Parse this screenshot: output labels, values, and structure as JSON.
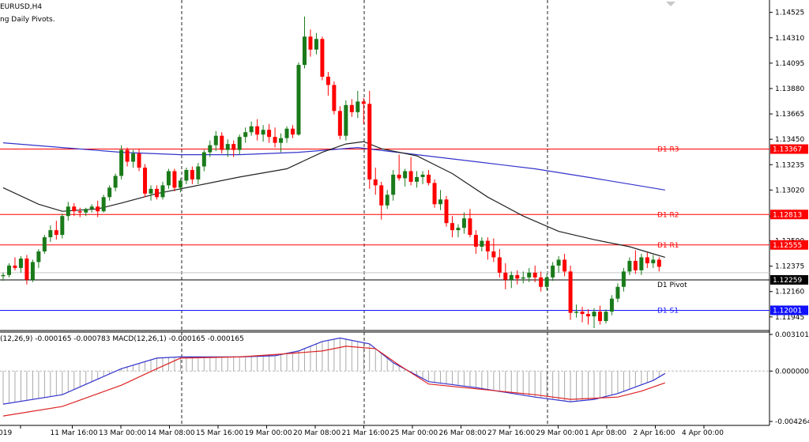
{
  "header": {
    "symbol_timeframe": "EURUSD,H4",
    "indicator": "ng Daily Pivots."
  },
  "macd_label": "(12,26,9) -0.000165 -0.000783 MACD(12,26,1) -0.000165 -0.000165",
  "colors": {
    "bull": "#1a7a1a",
    "bear": "#ff0000",
    "pivot_resistance": "#ff0000",
    "pivot_support": "#1010ff",
    "ma_slow": "#3333cc",
    "ma_fast": "#222222",
    "macd_line": "#3333cc",
    "signal_line": "#dd2222"
  },
  "chart_data": [
    {
      "type": "candlestick",
      "title": "EURUSD,H4",
      "ylim": [
        1.1183,
        1.1463
      ],
      "y_ticks": [
        "1.14525",
        "1.14310",
        "1.14095",
        "1.13880",
        "1.13665",
        "1.13450",
        "1.13235",
        "1.13020",
        "1.12800",
        "1.12590",
        "1.12375",
        "1.12160",
        "1.11945"
      ],
      "x_ticks": [
        "019",
        "11 Mar 16:00",
        "13 Mar 00:00",
        "14 Mar 08:00",
        "15 Mar 16:00",
        "19 Mar 00:00",
        "20 Mar 08:00",
        "21 Mar 16:00",
        "25 Mar 00:00",
        "26 Mar 08:00",
        "27 Mar 16:00",
        "29 Mar 00:00",
        "1 Apr 08:00",
        "2 Apr 16:00",
        "4 Apr 00:00"
      ],
      "pivots": [
        {
          "name": "D1 R3",
          "value": 1.13367,
          "tag": "1.13367",
          "kind": "resistance"
        },
        {
          "name": "D1 R2",
          "value": 1.12813,
          "tag": "1.12813",
          "kind": "resistance"
        },
        {
          "name": "D1 R1",
          "value": 1.12555,
          "tag": "1.12555",
          "kind": "resistance"
        },
        {
          "name": "D1 Pivot",
          "value": 1.12259,
          "tag": "1.12259",
          "kind": "pivot"
        },
        {
          "name": "D1 S1",
          "value": 1.12001,
          "tag": "1.12001",
          "kind": "support"
        }
      ],
      "current_price": 1.1232,
      "candles": [
        [
          1.1229,
          1.1232,
          1.1225,
          1.123
        ],
        [
          1.123,
          1.124,
          1.1228,
          1.1238
        ],
        [
          1.1238,
          1.1245,
          1.1234,
          1.1236
        ],
        [
          1.1236,
          1.1246,
          1.1232,
          1.1244
        ],
        [
          1.1244,
          1.1247,
          1.1222,
          1.1226
        ],
        [
          1.1226,
          1.1243,
          1.1224,
          1.1241
        ],
        [
          1.1241,
          1.1252,
          1.1236,
          1.125
        ],
        [
          1.125,
          1.1264,
          1.1248,
          1.1262
        ],
        [
          1.1262,
          1.1272,
          1.1258,
          1.1268
        ],
        [
          1.1268,
          1.1276,
          1.126,
          1.1264
        ],
        [
          1.1264,
          1.1282,
          1.1261,
          1.128
        ],
        [
          1.128,
          1.1292,
          1.1276,
          1.1288
        ],
        [
          1.1288,
          1.1291,
          1.128,
          1.1284
        ],
        [
          1.1284,
          1.1287,
          1.1279,
          1.1283
        ],
        [
          1.1283,
          1.1287,
          1.128,
          1.1286
        ],
        [
          1.1286,
          1.129,
          1.1283,
          1.1288
        ],
        [
          1.1288,
          1.1293,
          1.1279,
          1.1284
        ],
        [
          1.1284,
          1.1298,
          1.1283,
          1.1296
        ],
        [
          1.1296,
          1.1306,
          1.1293,
          1.1304
        ],
        [
          1.1304,
          1.1316,
          1.1301,
          1.1314
        ],
        [
          1.1314,
          1.134,
          1.1311,
          1.1336
        ],
        [
          1.1336,
          1.1338,
          1.1322,
          1.1326
        ],
        [
          1.1326,
          1.1336,
          1.1321,
          1.1333
        ],
        [
          1.1333,
          1.1337,
          1.1318,
          1.1321
        ],
        [
          1.1321,
          1.1324,
          1.1296,
          1.1299
        ],
        [
          1.1299,
          1.1306,
          1.1293,
          1.1303
        ],
        [
          1.1303,
          1.1306,
          1.1294,
          1.1296
        ],
        [
          1.1296,
          1.1309,
          1.1294,
          1.1306
        ],
        [
          1.1306,
          1.132,
          1.1303,
          1.1318
        ],
        [
          1.1318,
          1.132,
          1.1301,
          1.1304
        ],
        [
          1.1304,
          1.1312,
          1.13,
          1.131
        ],
        [
          1.131,
          1.1321,
          1.1307,
          1.1319
        ],
        [
          1.1319,
          1.1322,
          1.1307,
          1.1311
        ],
        [
          1.1311,
          1.1325,
          1.1307,
          1.1322
        ],
        [
          1.1322,
          1.1336,
          1.1318,
          1.1334
        ],
        [
          1.1334,
          1.1344,
          1.133,
          1.134
        ],
        [
          1.134,
          1.1352,
          1.1335,
          1.1348
        ],
        [
          1.1348,
          1.1351,
          1.1333,
          1.1336
        ],
        [
          1.1336,
          1.1345,
          1.133,
          1.1341
        ],
        [
          1.1341,
          1.1344,
          1.133,
          1.1336
        ],
        [
          1.1336,
          1.1349,
          1.1332,
          1.1347
        ],
        [
          1.1347,
          1.1355,
          1.1342,
          1.1351
        ],
        [
          1.1351,
          1.136,
          1.1348,
          1.1356
        ],
        [
          1.1356,
          1.1362,
          1.1344,
          1.1349
        ],
        [
          1.1349,
          1.1357,
          1.1343,
          1.1353
        ],
        [
          1.1353,
          1.1358,
          1.1342,
          1.1347
        ],
        [
          1.1347,
          1.1355,
          1.1338,
          1.1342
        ],
        [
          1.1342,
          1.135,
          1.1334,
          1.1346
        ],
        [
          1.1346,
          1.1356,
          1.1342,
          1.1354
        ],
        [
          1.1354,
          1.1357,
          1.1346,
          1.1349
        ],
        [
          1.1349,
          1.141,
          1.1348,
          1.1408
        ],
        [
          1.1408,
          1.1449,
          1.1405,
          1.1432
        ],
        [
          1.1432,
          1.1438,
          1.1415,
          1.1421
        ],
        [
          1.1421,
          1.1435,
          1.1417,
          1.143
        ],
        [
          1.143,
          1.1432,
          1.1395,
          1.1398
        ],
        [
          1.1398,
          1.1402,
          1.1382,
          1.1391
        ],
        [
          1.1391,
          1.1394,
          1.1366,
          1.1369
        ],
        [
          1.1369,
          1.1373,
          1.1345,
          1.1348
        ],
        [
          1.1348,
          1.1378,
          1.1344,
          1.1374
        ],
        [
          1.1374,
          1.1379,
          1.1364,
          1.1368
        ],
        [
          1.1368,
          1.1386,
          1.1363,
          1.1377
        ],
        [
          1.1377,
          1.138,
          1.1358,
          1.1375
        ],
        [
          1.1375,
          1.1386,
          1.1303,
          1.1311
        ],
        [
          1.1311,
          1.1321,
          1.1298,
          1.1306
        ],
        [
          1.1306,
          1.1309,
          1.1277,
          1.1289
        ],
        [
          1.1289,
          1.1302,
          1.1286,
          1.1298
        ],
        [
          1.1298,
          1.1319,
          1.1293,
          1.1315
        ],
        [
          1.1315,
          1.1332,
          1.131,
          1.1312
        ],
        [
          1.1312,
          1.132,
          1.1305,
          1.1318
        ],
        [
          1.1318,
          1.133,
          1.1306,
          1.1309
        ],
        [
          1.1309,
          1.1318,
          1.1304,
          1.1313
        ],
        [
          1.1313,
          1.1318,
          1.1307,
          1.1315
        ],
        [
          1.1315,
          1.1319,
          1.1306,
          1.1308
        ],
        [
          1.1308,
          1.1311,
          1.1287,
          1.129
        ],
        [
          1.129,
          1.1302,
          1.1285,
          1.1294
        ],
        [
          1.1294,
          1.1297,
          1.1271,
          1.1274
        ],
        [
          1.1274,
          1.128,
          1.1262,
          1.1268
        ],
        [
          1.1268,
          1.1273,
          1.1262,
          1.127
        ],
        [
          1.127,
          1.1283,
          1.1265,
          1.1278
        ],
        [
          1.1278,
          1.1286,
          1.1262,
          1.1264
        ],
        [
          1.1264,
          1.1268,
          1.1248,
          1.1254
        ],
        [
          1.1254,
          1.1262,
          1.125,
          1.1259
        ],
        [
          1.1259,
          1.1262,
          1.1243,
          1.125
        ],
        [
          1.125,
          1.1261,
          1.1241,
          1.1245
        ],
        [
          1.1245,
          1.1252,
          1.1228,
          1.1232
        ],
        [
          1.1232,
          1.124,
          1.1218,
          1.1226
        ],
        [
          1.1226,
          1.1233,
          1.1219,
          1.123
        ],
        [
          1.123,
          1.1234,
          1.1222,
          1.1227
        ],
        [
          1.1227,
          1.1233,
          1.1223,
          1.1228
        ],
        [
          1.1228,
          1.1236,
          1.1224,
          1.1232
        ],
        [
          1.1232,
          1.1238,
          1.1224,
          1.1228
        ],
        [
          1.1228,
          1.1233,
          1.1216,
          1.122
        ],
        [
          1.122,
          1.1231,
          1.1217,
          1.1228
        ],
        [
          1.1228,
          1.1241,
          1.1225,
          1.1238
        ],
        [
          1.1238,
          1.1246,
          1.1232,
          1.1243
        ],
        [
          1.1243,
          1.1248,
          1.1229,
          1.1233
        ],
        [
          1.1233,
          1.1238,
          1.1192,
          1.1198
        ],
        [
          1.1198,
          1.1205,
          1.1194,
          1.1199
        ],
        [
          1.1199,
          1.1203,
          1.119,
          1.1197
        ],
        [
          1.1197,
          1.1201,
          1.1188,
          1.1195
        ],
        [
          1.1195,
          1.1202,
          1.1185,
          1.1199
        ],
        [
          1.1199,
          1.1204,
          1.1188,
          1.1191
        ],
        [
          1.1191,
          1.1201,
          1.1189,
          1.1199
        ],
        [
          1.1199,
          1.1213,
          1.1196,
          1.121
        ],
        [
          1.121,
          1.1223,
          1.1207,
          1.122
        ],
        [
          1.122,
          1.1236,
          1.1216,
          1.1233
        ],
        [
          1.1233,
          1.1245,
          1.123,
          1.1242
        ],
        [
          1.1242,
          1.1251,
          1.1231,
          1.1234
        ],
        [
          1.1234,
          1.1248,
          1.123,
          1.1245
        ],
        [
          1.1245,
          1.1249,
          1.1236,
          1.124
        ],
        [
          1.124,
          1.1247,
          1.1236,
          1.1243
        ],
        [
          1.1243,
          1.1245,
          1.1233,
          1.1237
        ]
      ],
      "ma_slow": [
        [
          0,
          1.1342
        ],
        [
          10,
          1.1338
        ],
        [
          20,
          1.1334
        ],
        [
          30,
          1.1332
        ],
        [
          40,
          1.1332
        ],
        [
          50,
          1.1334
        ],
        [
          55,
          1.1336
        ],
        [
          60,
          1.1338
        ],
        [
          70,
          1.1332
        ],
        [
          80,
          1.1326
        ],
        [
          90,
          1.132
        ],
        [
          100,
          1.1312
        ],
        [
          112,
          1.1302
        ]
      ],
      "ma_fast": [
        [
          0,
          1.1304
        ],
        [
          6,
          1.129
        ],
        [
          10,
          1.1284
        ],
        [
          16,
          1.1286
        ],
        [
          20,
          1.1291
        ],
        [
          26,
          1.1299
        ],
        [
          32,
          1.1305
        ],
        [
          40,
          1.1313
        ],
        [
          48,
          1.132
        ],
        [
          54,
          1.1334
        ],
        [
          58,
          1.1341
        ],
        [
          61,
          1.1343
        ],
        [
          64,
          1.1337
        ],
        [
          70,
          1.1331
        ],
        [
          76,
          1.1316
        ],
        [
          82,
          1.1296
        ],
        [
          88,
          1.128
        ],
        [
          94,
          1.1267
        ],
        [
          100,
          1.126
        ],
        [
          106,
          1.1254
        ],
        [
          110,
          1.1248
        ],
        [
          112,
          1.1245
        ]
      ]
    },
    {
      "type": "line",
      "title": "MACD(12,26,1)",
      "ylim": [
        -0.0046,
        0.0033
      ],
      "y_ticks": [
        "0.003101",
        "0.000000",
        "-0.004264"
      ],
      "series": [
        {
          "name": "MACD(12,26,1)",
          "points": [
            [
              0,
              -0.0028
            ],
            [
              10,
              -0.002
            ],
            [
              20,
              0.0002
            ],
            [
              26,
              0.0011
            ],
            [
              30,
              0.0012
            ],
            [
              40,
              0.0012
            ],
            [
              46,
              0.0013
            ],
            [
              50,
              0.0017
            ],
            [
              54,
              0.0025
            ],
            [
              57,
              0.0028
            ],
            [
              62,
              0.0023
            ],
            [
              66,
              0.0007
            ],
            [
              72,
              -0.0009
            ],
            [
              80,
              -0.0014
            ],
            [
              90,
              -0.0022
            ],
            [
              96,
              -0.0026
            ],
            [
              100,
              -0.0024
            ],
            [
              104,
              -0.0019
            ],
            [
              110,
              -0.0008
            ],
            [
              112,
              -0.0002
            ]
          ]
        },
        {
          "name": "",
          "points": [
            [
              0,
              -0.0038
            ],
            [
              10,
              -0.003
            ],
            [
              20,
              -0.0012
            ],
            [
              26,
              0.0002
            ],
            [
              30,
              0.0011
            ],
            [
              40,
              0.0012
            ],
            [
              46,
              0.0014
            ],
            [
              54,
              0.0017
            ],
            [
              58,
              0.0021
            ],
            [
              63,
              0.0019
            ],
            [
              67,
              0.0005
            ],
            [
              72,
              -0.0011
            ],
            [
              80,
              -0.0015
            ],
            [
              90,
              -0.002
            ],
            [
              96,
              -0.0024
            ],
            [
              100,
              -0.0023
            ],
            [
              104,
              -0.0022
            ],
            [
              108,
              -0.0017
            ],
            [
              112,
              -0.001
            ]
          ]
        }
      ]
    }
  ]
}
